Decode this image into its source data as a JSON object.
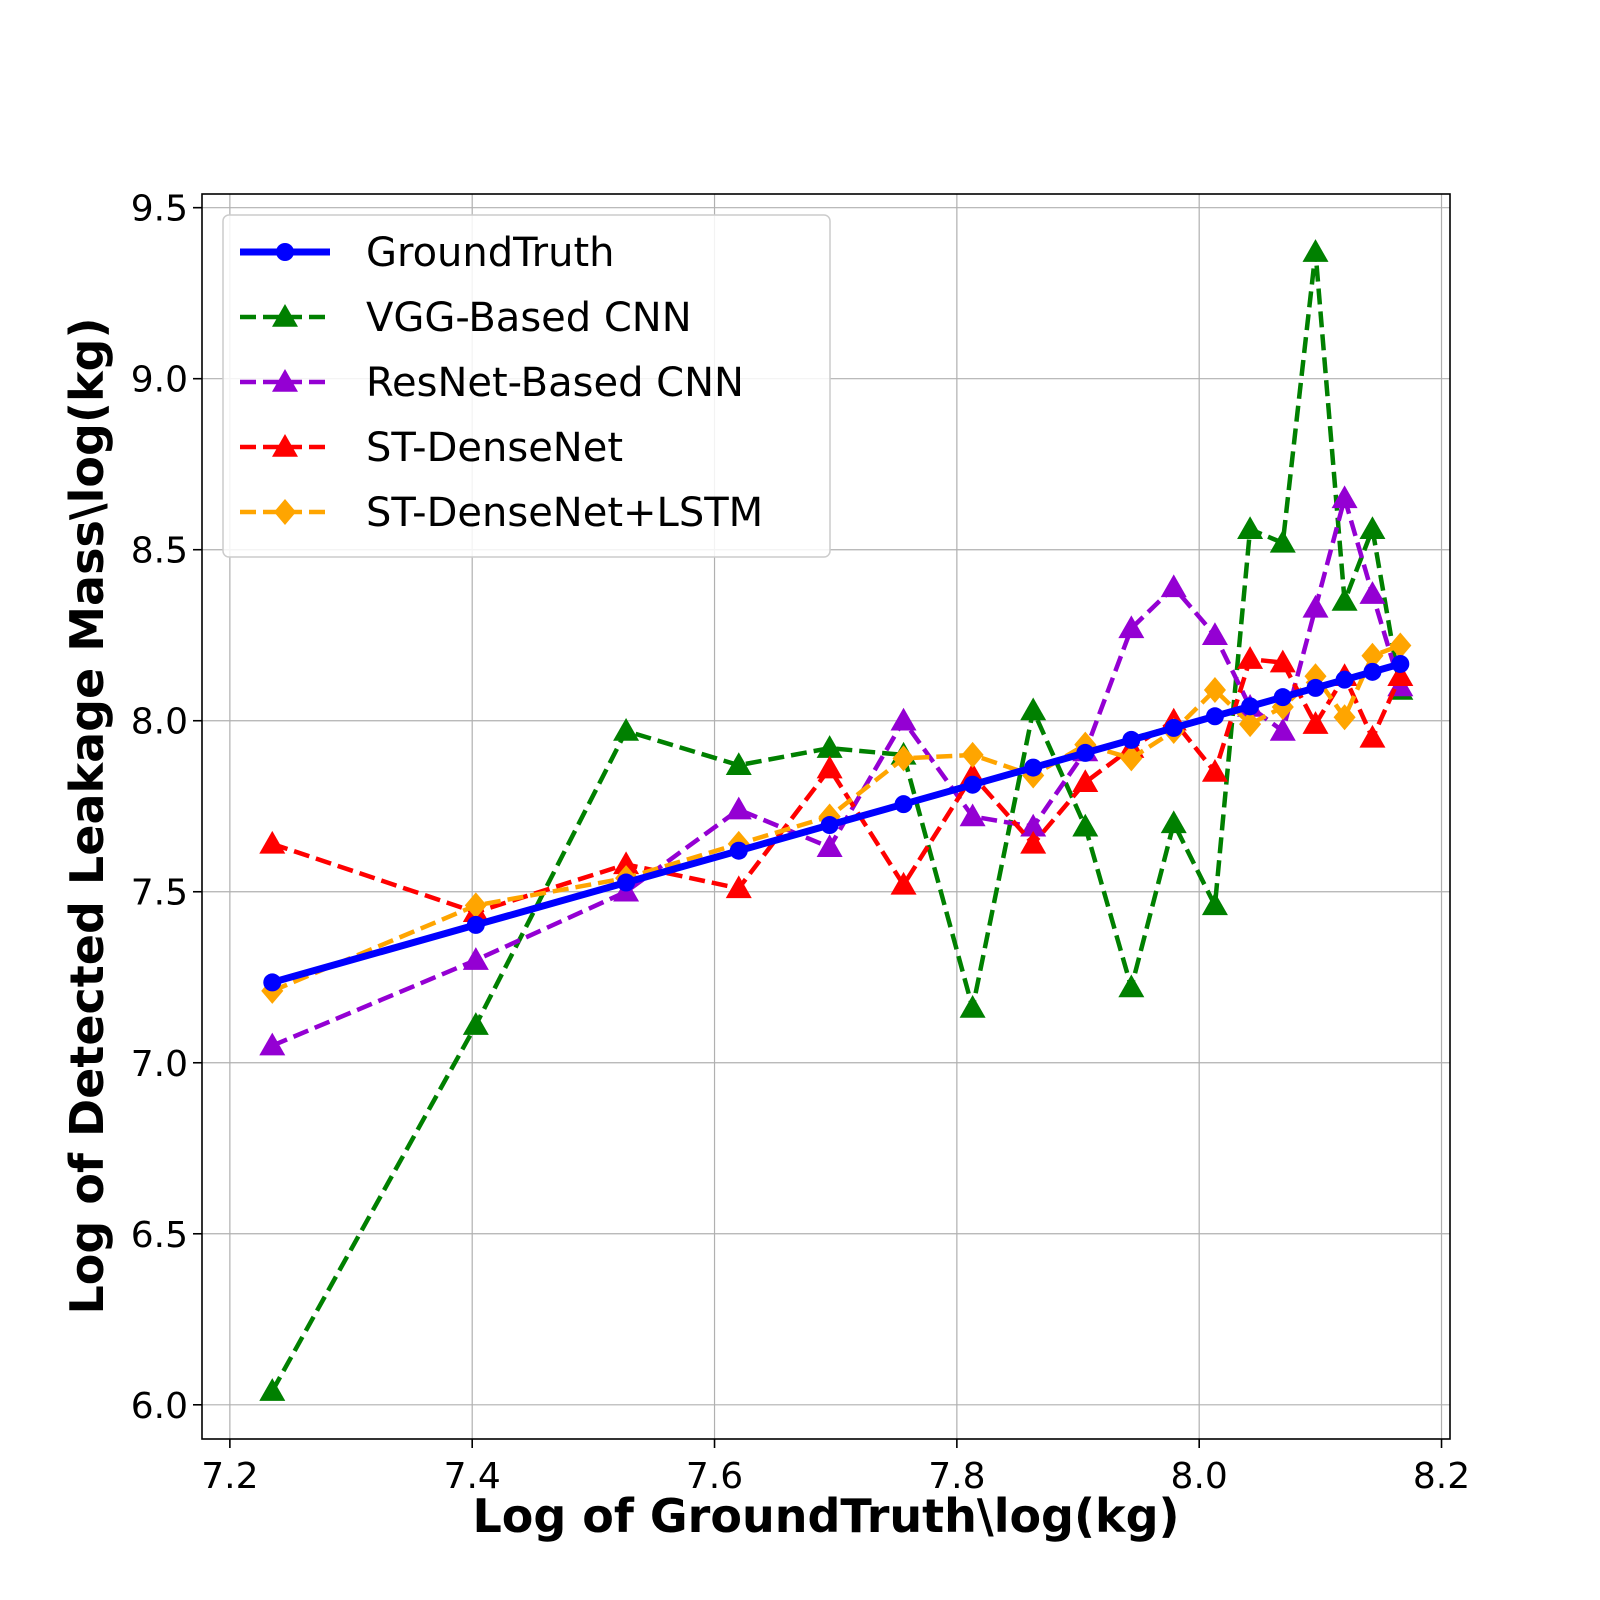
{
  "chart_data": {
    "type": "line",
    "title": "",
    "xlabel": "Log of GroundTruth\\log(kg)",
    "ylabel": "Log of Detected Leakage Mass\\log(kg)",
    "xlim": [
      7.177,
      8.207
    ],
    "ylim": [
      5.9,
      9.54
    ],
    "xticks": [
      7.2,
      7.4,
      7.6,
      7.8,
      8.0,
      8.2
    ],
    "xtick_labels": [
      "7.2",
      "7.4",
      "7.6",
      "7.8",
      "8.0",
      "8.2"
    ],
    "yticks": [
      6.0,
      6.5,
      7.0,
      7.5,
      8.0,
      8.5,
      9.0,
      9.5
    ],
    "ytick_labels": [
      "6.0",
      "6.5",
      "7.0",
      "7.5",
      "8.0",
      "8.5",
      "9.0",
      "9.5"
    ],
    "grid": true,
    "legend_position": "top-left",
    "x": [
      7.235,
      7.403,
      7.527,
      7.62,
      7.695,
      7.756,
      7.813,
      7.863,
      7.906,
      7.944,
      7.979,
      8.013,
      8.042,
      8.069,
      8.096,
      8.12,
      8.143,
      8.166
    ],
    "series": [
      {
        "name": "GroundTruth",
        "color": "#0000ff",
        "line_style": "solid",
        "marker": "circle",
        "values": [
          7.235,
          7.403,
          7.527,
          7.62,
          7.695,
          7.756,
          7.813,
          7.863,
          7.906,
          7.944,
          7.979,
          8.013,
          8.042,
          8.069,
          8.096,
          8.12,
          8.143,
          8.166
        ]
      },
      {
        "name": "VGG-Based CNN",
        "color": "#008000",
        "line_style": "dashed",
        "marker": "triangle",
        "values": [
          6.04,
          7.11,
          7.97,
          7.87,
          7.92,
          7.9,
          7.16,
          8.03,
          7.69,
          7.22,
          7.7,
          7.46,
          8.56,
          8.52,
          9.37,
          8.35,
          8.56,
          8.09
        ]
      },
      {
        "name": "ResNet-Based CNN",
        "color": "#9400d3",
        "line_style": "dashed",
        "marker": "triangle",
        "values": [
          7.05,
          7.3,
          7.5,
          7.74,
          7.63,
          8.0,
          7.72,
          7.69,
          7.91,
          8.27,
          8.39,
          8.25,
          8.04,
          7.97,
          8.33,
          8.65,
          8.37,
          8.1
        ]
      },
      {
        "name": "ST-DenseNet",
        "color": "#ff0000",
        "line_style": "dashed",
        "marker": "triangle",
        "values": [
          7.64,
          7.44,
          7.58,
          7.51,
          7.86,
          7.52,
          7.84,
          7.64,
          7.82,
          7.92,
          8.0,
          7.85,
          8.18,
          8.17,
          7.99,
          8.13,
          7.95,
          8.13
        ]
      },
      {
        "name": "ST-DenseNet+LSTM",
        "color": "#ffa500",
        "line_style": "dashed",
        "marker": "diamond",
        "values": [
          7.21,
          7.46,
          7.54,
          7.64,
          7.72,
          7.89,
          7.9,
          7.84,
          7.93,
          7.89,
          7.97,
          8.09,
          7.99,
          8.04,
          8.13,
          8.01,
          8.19,
          8.22
        ]
      }
    ]
  }
}
